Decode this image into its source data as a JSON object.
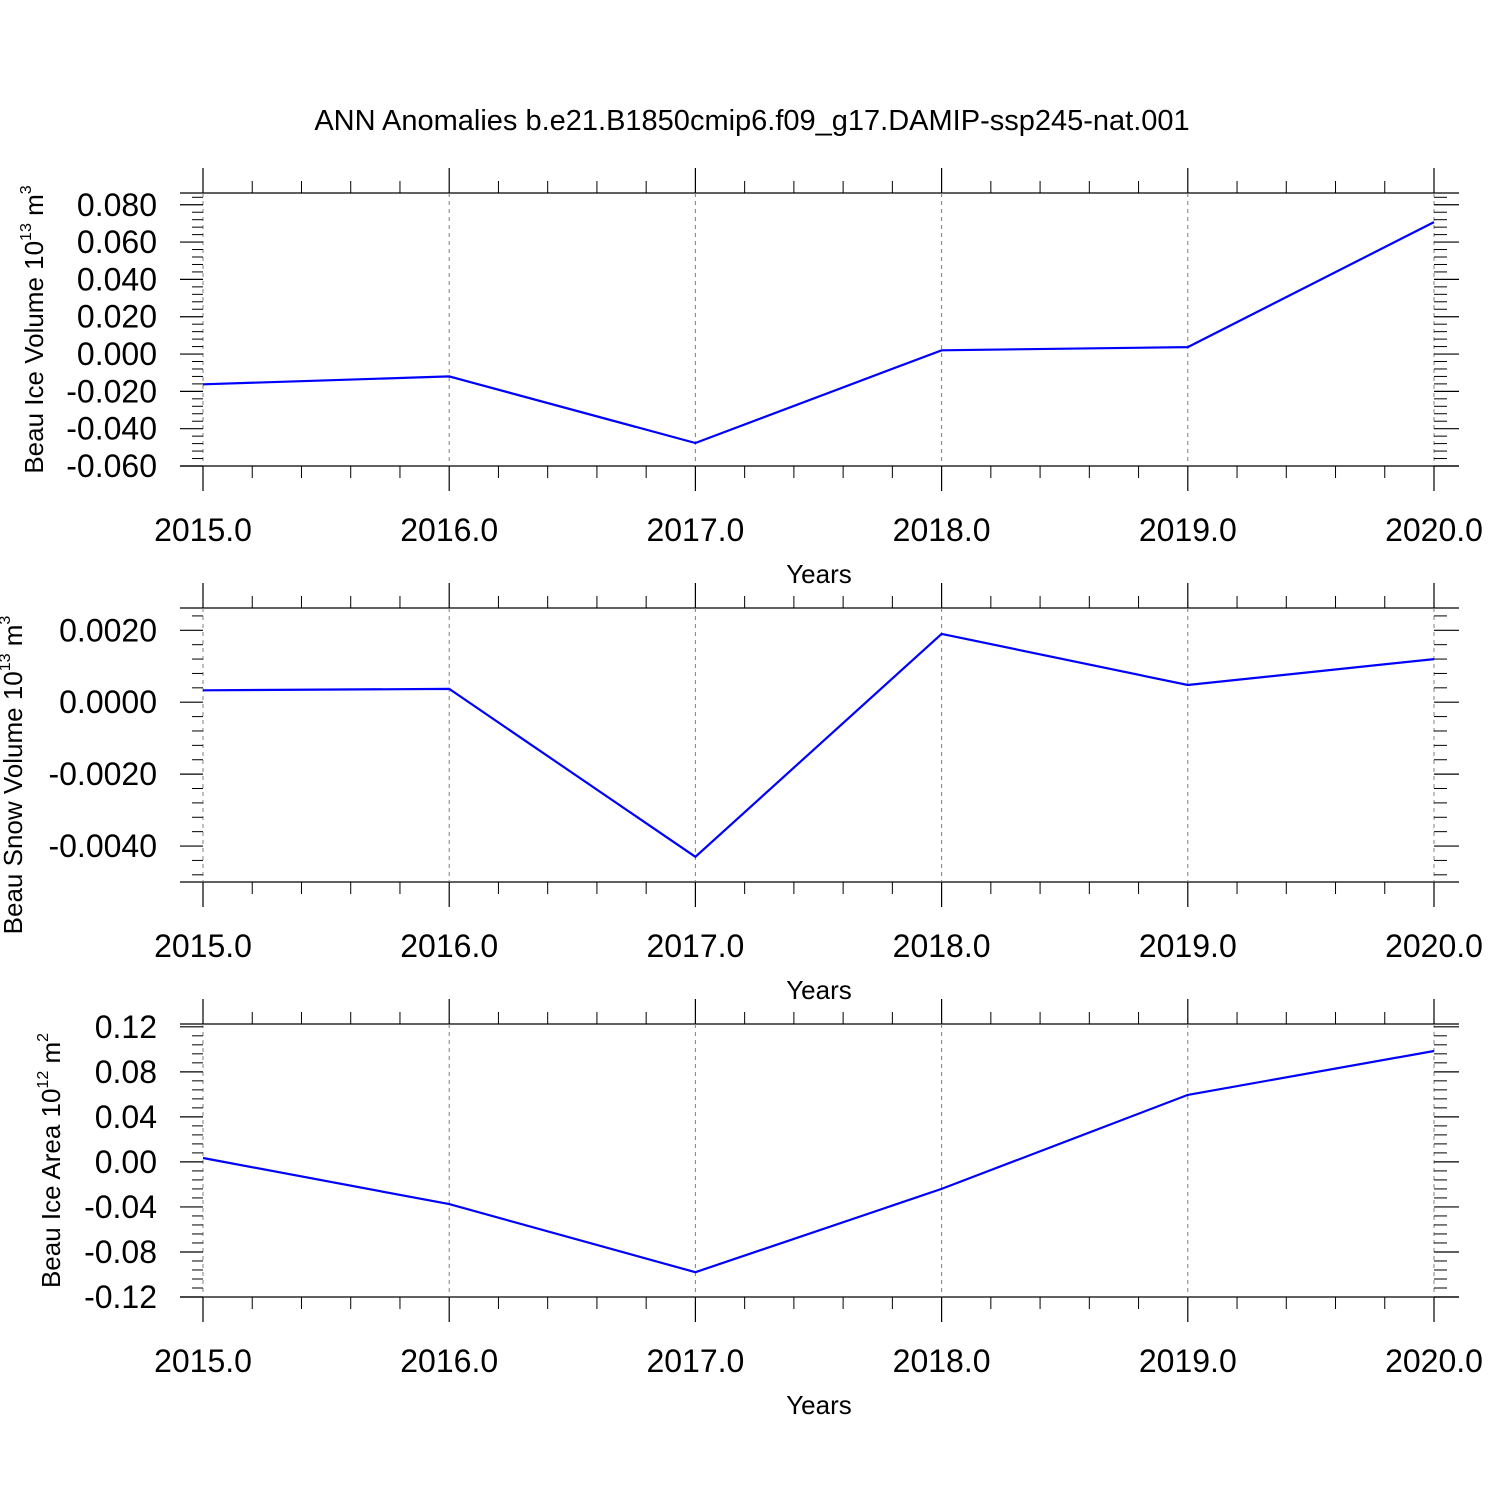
{
  "title": "ANN Anomalies b.e21.B1850cmip6.f09_g17.DAMIP-ssp245-nat.001",
  "colors": {
    "line": "#0000ff",
    "axis": "#000000",
    "grid": "#808080"
  },
  "chart_data": [
    {
      "type": "line",
      "ylabel": "Beau Ice Volume 10",
      "ylabel_sup": "13",
      "ylabel_unit": " m",
      "ylabel_unit_sup": "3",
      "xlabel": "Years",
      "xlim": [
        2015,
        2020
      ],
      "ylim": [
        -0.06,
        0.0863
      ],
      "x_ticks": [
        "2015.0",
        "2016.0",
        "2017.0",
        "2018.0",
        "2019.0",
        "2020.0"
      ],
      "y_ticks": [
        "-0.060",
        "-0.040",
        "-0.020",
        "0.000",
        "0.020",
        "0.040",
        "0.060",
        "0.080"
      ],
      "y_tick_values": [
        -0.06,
        -0.04,
        -0.02,
        0.0,
        0.02,
        0.04,
        0.06,
        0.08
      ],
      "grid": "vertical dashed at major x ticks",
      "x": [
        2015,
        2016,
        2017,
        2018,
        2019,
        2020
      ],
      "values": [
        -0.0162,
        -0.012,
        -0.0477,
        0.002,
        0.0037,
        0.0707
      ]
    },
    {
      "type": "line",
      "ylabel": "Beau Snow Volume 10",
      "ylabel_sup": "13",
      "ylabel_unit": " m",
      "ylabel_unit_sup": "3",
      "xlabel": "Years",
      "xlim": [
        2015,
        2020
      ],
      "ylim": [
        -0.005,
        0.00262
      ],
      "x_ticks": [
        "2015.0",
        "2016.0",
        "2017.0",
        "2018.0",
        "2019.0",
        "2020.0"
      ],
      "y_ticks": [
        "-0.0040",
        "-0.0020",
        "0.0000",
        "0.0020"
      ],
      "y_tick_values": [
        -0.004,
        -0.002,
        0.0,
        0.002
      ],
      "grid": "vertical dashed at major x ticks",
      "x": [
        2015,
        2016,
        2017,
        2018,
        2019,
        2020
      ],
      "values": [
        0.00033,
        0.00037,
        -0.0043,
        0.0019,
        0.00048,
        0.0012
      ]
    },
    {
      "type": "line",
      "ylabel": "Beau Ice Area 10",
      "ylabel_sup": "12",
      "ylabel_unit": " m",
      "ylabel_unit_sup": "2",
      "xlabel": "Years",
      "xlim": [
        2015,
        2020
      ],
      "ylim": [
        -0.12,
        0.1225
      ],
      "x_ticks": [
        "2015.0",
        "2016.0",
        "2017.0",
        "2018.0",
        "2019.0",
        "2020.0"
      ],
      "y_ticks": [
        "-0.12",
        "-0.08",
        "-0.04",
        "0.00",
        "0.04",
        "0.08",
        "0.12"
      ],
      "y_tick_values": [
        -0.12,
        -0.08,
        -0.04,
        0.0,
        0.04,
        0.08,
        0.12
      ],
      "grid": "vertical dashed at major x ticks",
      "x": [
        2015,
        2016,
        2017,
        2018,
        2019,
        2020
      ],
      "values": [
        0.0035,
        -0.0375,
        -0.098,
        -0.024,
        0.0595,
        0.0985
      ]
    }
  ]
}
